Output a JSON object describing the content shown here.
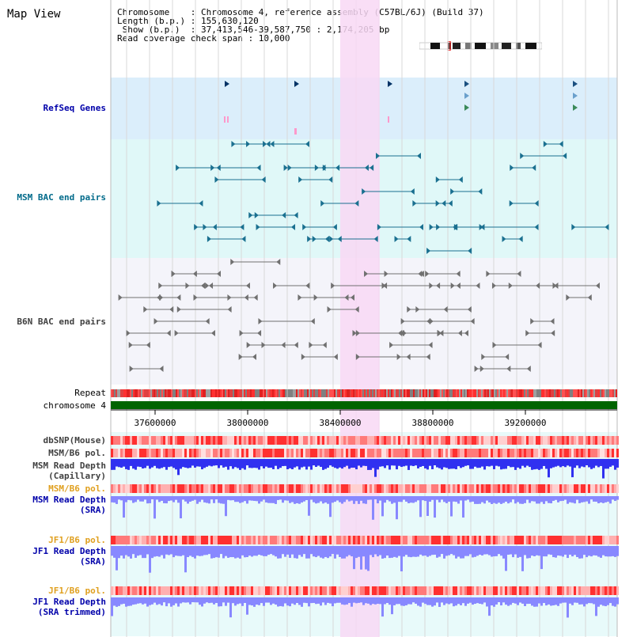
{
  "app": {
    "title": "Map View"
  },
  "info": {
    "lines": [
      "Chromosome    : Chromosome 4, reference assembly (C57BL/6J) (Build 37)",
      "Length (b.p.) : 155,630,120",
      " Show (b.p.)  : 37,413,546-39,587,750 : 2,174,205 bp",
      "Read coverage check span : 10,000"
    ]
  },
  "tracks": {
    "refseq": "RefSeq Genes",
    "msm_bac": "MSM BAC end pairs",
    "b6n_bac": "B6N BAC end pairs",
    "repeat": "Repeat",
    "chromosome": "chromosome 4",
    "dbsnp": "dbSNP(Mouse)",
    "msm_b6_pol_1": "MSM/B6 pol.",
    "msm_depth_cap_1": "MSM Read Depth",
    "msm_depth_cap_2": "(Capillary)",
    "msm_b6_pol_2": "MSM/B6 pol.",
    "msm_depth_sra_1": "MSM Read Depth",
    "msm_depth_sra_2": "(SRA)",
    "jf1_b6_pol_1": "JF1/B6 pol.",
    "jf1_depth_sra_1": "JF1 Read Depth",
    "jf1_depth_sra_2": "(SRA)",
    "jf1_b6_pol_2": "JF1/B6 pol.",
    "jf1_depth_trim_1": "JF1 Read Depth",
    "jf1_depth_trim_2": "(SRA trimmed)"
  },
  "axis": {
    "ticks": [
      {
        "label": "37600000",
        "value": 37600000
      },
      {
        "label": "38000000",
        "value": 38000000
      },
      {
        "label": "38400000",
        "value": 38400000
      },
      {
        "label": "38800000",
        "value": 38800000
      },
      {
        "label": "39200000",
        "value": 39200000
      }
    ],
    "range_start": 37413546,
    "range_end": 39587750
  },
  "highlight": {
    "start": 38400000,
    "end": 38570000
  },
  "colors": {
    "refseq_bg": "#dbeefb",
    "msm_bg": "#e0f8f8",
    "b6n_bg": "#f4f4fa",
    "grid": "#d8d8d8",
    "highlight": "#f8d8f4",
    "chromosome": "#006400",
    "snp": "#ff5050",
    "depth_blue": "#3030f0",
    "depth_light": "#8888ff"
  }
}
